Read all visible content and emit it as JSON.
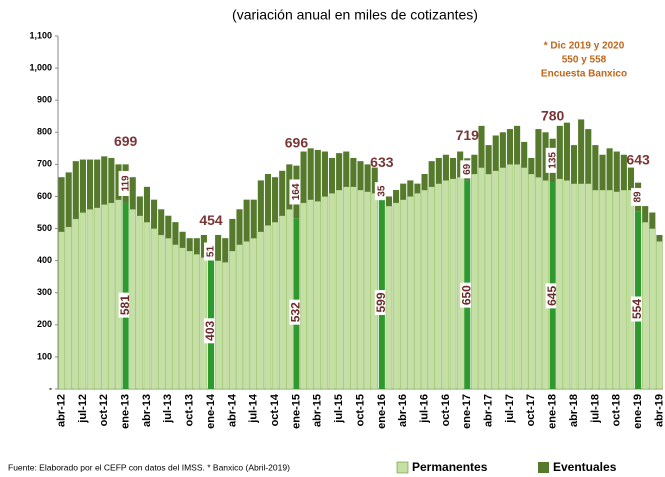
{
  "chart_data": {
    "type": "stacked_bar",
    "title": "(variación anual en miles de cotizantes)",
    "note": [
      "* Dic 2019 y 2020",
      "550 y 558",
      "Encuesta Banxico"
    ],
    "source": "Fuente: Elaborado por el CEFP con datos del IMSS. * Banxico (Abril-2019)",
    "categories": [
      "abr-12",
      null,
      null,
      "jul-12",
      null,
      null,
      "oct-12",
      null,
      null,
      "ene-13",
      null,
      null,
      "abr-13",
      null,
      null,
      "jul-13",
      null,
      null,
      "oct-13",
      null,
      null,
      "ene-14",
      null,
      null,
      "abr-14",
      null,
      null,
      "jul-14",
      null,
      null,
      "oct-14",
      null,
      null,
      "ene-15",
      null,
      null,
      "abr-15",
      null,
      null,
      "jul-15",
      null,
      null,
      "oct-15",
      null,
      null,
      "ene-16",
      null,
      null,
      "abr-16",
      null,
      null,
      "jul-16",
      null,
      null,
      "oct-16",
      null,
      null,
      "ene-17",
      null,
      null,
      "abr-17",
      null,
      null,
      "jul-17",
      null,
      null,
      "oct-17",
      null,
      null,
      "ene-18",
      null,
      null,
      "abr-18",
      null,
      null,
      "jul-18",
      null,
      null,
      "oct-18",
      null,
      null,
      "ene-19",
      null,
      null,
      "abr-19"
    ],
    "series": [
      {
        "name": "Permanentes",
        "color": "#c4e0a2",
        "highlight_color": "#2e9a2e",
        "values": [
          490,
          505,
          530,
          550,
          560,
          565,
          575,
          580,
          590,
          581,
          560,
          540,
          520,
          500,
          480,
          470,
          450,
          440,
          430,
          420,
          410,
          403,
          400,
          395,
          430,
          450,
          460,
          470,
          490,
          510,
          520,
          540,
          560,
          532,
          580,
          590,
          585,
          600,
          610,
          620,
          630,
          630,
          620,
          615,
          610,
          599,
          570,
          580,
          590,
          600,
          610,
          620,
          630,
          640,
          650,
          655,
          660,
          650,
          670,
          690,
          670,
          680,
          690,
          700,
          700,
          690,
          670,
          660,
          650,
          645,
          655,
          650,
          640,
          640,
          640,
          620,
          620,
          620,
          615,
          620,
          620,
          554,
          520,
          500,
          460
        ]
      },
      {
        "name": "Eventuales",
        "color": "#567a2c",
        "highlight_color": "#567a2c",
        "values": [
          170,
          170,
          180,
          165,
          155,
          150,
          150,
          140,
          110,
          119,
          100,
          60,
          110,
          90,
          80,
          70,
          70,
          50,
          40,
          50,
          70,
          51,
          80,
          75,
          100,
          110,
          130,
          120,
          160,
          160,
          140,
          140,
          140,
          164,
          160,
          160,
          160,
          140,
          110,
          115,
          110,
          90,
          90,
          85,
          80,
          35,
          30,
          40,
          50,
          50,
          30,
          50,
          80,
          80,
          80,
          65,
          80,
          69,
          60,
          130,
          90,
          110,
          110,
          110,
          120,
          80,
          50,
          150,
          150,
          135,
          165,
          180,
          120,
          200,
          170,
          140,
          110,
          130,
          125,
          110,
          70,
          89,
          50,
          50,
          20
        ]
      }
    ],
    "total_labels": [
      null,
      null,
      null,
      null,
      null,
      null,
      null,
      null,
      null,
      699,
      null,
      null,
      null,
      null,
      null,
      null,
      null,
      null,
      null,
      null,
      null,
      454,
      null,
      null,
      null,
      null,
      null,
      null,
      null,
      null,
      null,
      null,
      null,
      696,
      null,
      null,
      null,
      null,
      null,
      null,
      null,
      null,
      null,
      null,
      null,
      633,
      null,
      null,
      null,
      null,
      null,
      null,
      null,
      null,
      null,
      null,
      null,
      719,
      null,
      null,
      null,
      null,
      null,
      null,
      null,
      null,
      null,
      null,
      null,
      780,
      null,
      null,
      null,
      null,
      null,
      null,
      null,
      null,
      null,
      null,
      null,
      643,
      null,
      null,
      null
    ],
    "ylim": [
      0,
      1100
    ],
    "yticks": [
      {
        "value": 0,
        "label": "-"
      },
      100,
      200,
      300,
      400,
      500,
      600,
      700,
      800,
      900,
      {
        "value": 1000,
        "label": "1,000"
      },
      {
        "value": 1100,
        "label": "1,100"
      }
    ]
  }
}
